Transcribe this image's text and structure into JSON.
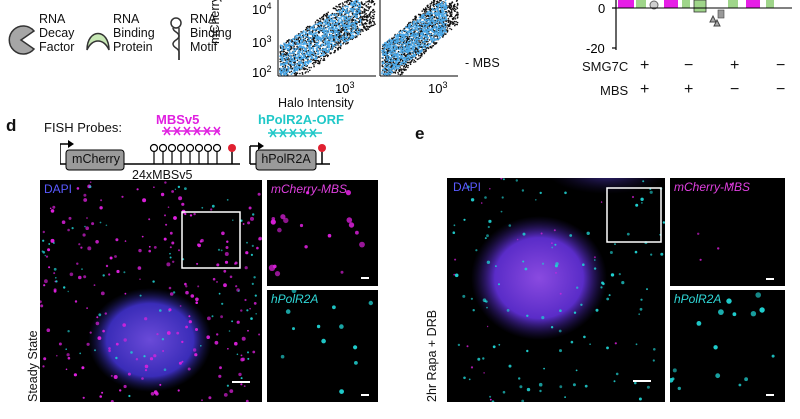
{
  "legend": {
    "decay": [
      "RNA",
      "Decay",
      "Factor"
    ],
    "binding_protein": [
      "RNA",
      "Binding",
      "Protein"
    ],
    "binding_motif": [
      "RNA",
      "Binding",
      "Motif"
    ]
  },
  "scatter": {
    "ylabel": "mCherry",
    "xlabel": "Halo Intensity",
    "y_ticks": [
      "10^4",
      "10^3",
      "10^2"
    ],
    "x_tick_left": "10^3",
    "x_tick_right": "10^3",
    "condition": "- MBS"
  },
  "bar_chart": {
    "y_ticks": [
      "0",
      "-20"
    ],
    "rows": [
      {
        "label": "SMG7C",
        "values": [
          "+",
          "−",
          "+",
          "−"
        ]
      },
      {
        "label": "MBS",
        "values": [
          "+",
          "+",
          "−",
          "−"
        ]
      }
    ],
    "colors": {
      "magenta": "#e61ee6",
      "green": "#9fd58a",
      "gray": "#999999"
    }
  },
  "panel_d": {
    "letter": "d",
    "fish_probes": "FISH Probes:",
    "probe_mbs": "MBSv5",
    "probe_polr2a": "hPolR2A-ORF",
    "gene_mcherry": "mCherry",
    "array": "24xMBSv5",
    "gene_polr2a": "hPolR2A",
    "dapi": "DAPI",
    "inset_top": "mCherry-MBS",
    "inset_bottom": "hPolR2A",
    "side_label": "Steady State"
  },
  "panel_e": {
    "letter": "e",
    "dapi": "DAPI",
    "inset_top": "mCherry-MBS",
    "inset_bottom": "hPolR2A",
    "side_label": "2hr Rapa + DRB"
  },
  "colors": {
    "magenta": "#e020e0",
    "cyan": "#20d0d0",
    "dapi": "#3a3ad8",
    "scatter_blue": "#4aa8e8"
  }
}
